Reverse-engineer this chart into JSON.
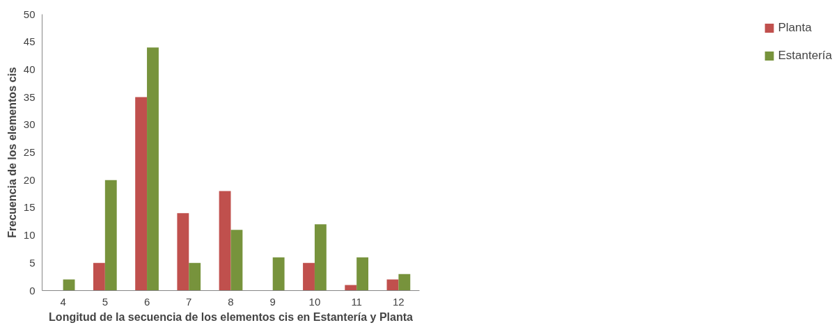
{
  "chart_data": {
    "type": "bar",
    "xlabel": "Longitud de la secuencia de los elementos cis en Estantería y Planta",
    "ylabel": "Frecuencia de los elementos cis",
    "categories": [
      "4",
      "5",
      "6",
      "7",
      "8",
      "9",
      "10",
      "11",
      "12"
    ],
    "series": [
      {
        "name": "Planta",
        "color": "#c0504d",
        "values": [
          0,
          5,
          35,
          14,
          18,
          0,
          5,
          1,
          2
        ]
      },
      {
        "name": "Estantería",
        "color": "#77933c",
        "values": [
          2,
          20,
          44,
          5,
          11,
          6,
          12,
          6,
          3
        ]
      }
    ],
    "ylim": [
      0,
      50
    ],
    "yticks": [
      0,
      5,
      10,
      15,
      20,
      25,
      30,
      35,
      40,
      45,
      50
    ],
    "grid": false,
    "legend": "right"
  }
}
